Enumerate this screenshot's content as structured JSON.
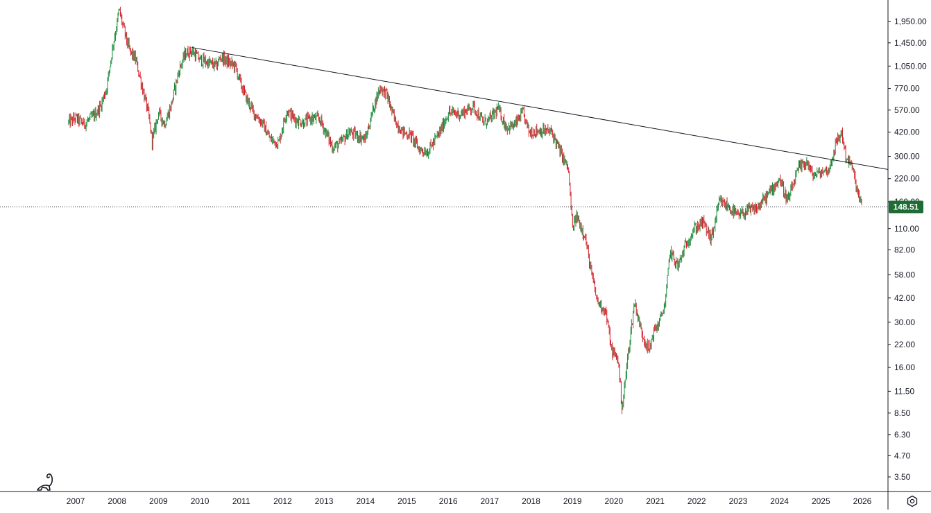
{
  "chart_data": {
    "type": "candlestick",
    "scale": "log",
    "title": "",
    "xlabel": "",
    "ylabel": "",
    "ylim": [
      3.0,
      2400
    ],
    "x_ticks": [
      "2007",
      "2008",
      "2009",
      "2010",
      "2011",
      "2012",
      "2013",
      "2014",
      "2015",
      "2016",
      "2017",
      "2018",
      "2019",
      "2020",
      "2021",
      "2022",
      "2023",
      "2024",
      "2025",
      "2026"
    ],
    "y_ticks": [
      "1,950.00",
      "1,450.00",
      "1,050.00",
      "770.00",
      "570.00",
      "420.00",
      "300.00",
      "220.00",
      "160.00",
      "110.00",
      "82.00",
      "58.00",
      "42.00",
      "30.00",
      "22.00",
      "16.00",
      "11.50",
      "8.50",
      "6.30",
      "4.70",
      "3.50"
    ],
    "last_price": {
      "label": "148.51",
      "value": 148.51,
      "color": "#1e6b34"
    },
    "colors": {
      "up": "#1a8a3a",
      "down": "#d41f28",
      "trendline": "#131722"
    },
    "trendline": {
      "start": {
        "year": 2009.8,
        "price": 1360
      },
      "end": {
        "year": 2026.65,
        "price": 250
      }
    },
    "price_path": [
      [
        2006.83,
        480
      ],
      [
        2007.0,
        510
      ],
      [
        2007.2,
        470
      ],
      [
        2007.45,
        530
      ],
      [
        2007.6,
        600
      ],
      [
        2007.75,
        780
      ],
      [
        2007.9,
        1400
      ],
      [
        2008.0,
        1900
      ],
      [
        2008.05,
        2300
      ],
      [
        2008.15,
        1800
      ],
      [
        2008.3,
        1300
      ],
      [
        2008.45,
        1150
      ],
      [
        2008.6,
        800
      ],
      [
        2008.75,
        550
      ],
      [
        2008.85,
        370
      ],
      [
        2009.0,
        550
      ],
      [
        2009.15,
        470
      ],
      [
        2009.3,
        600
      ],
      [
        2009.5,
        1000
      ],
      [
        2009.65,
        1250
      ],
      [
        2009.8,
        1300
      ],
      [
        2010.0,
        1150
      ],
      [
        2010.2,
        1100
      ],
      [
        2010.4,
        1050
      ],
      [
        2010.5,
        1200
      ],
      [
        2010.7,
        1100
      ],
      [
        2010.85,
        1050
      ],
      [
        2011.0,
        800
      ],
      [
        2011.15,
        650
      ],
      [
        2011.3,
        550
      ],
      [
        2011.5,
        480
      ],
      [
        2011.7,
        380
      ],
      [
        2011.9,
        360
      ],
      [
        2012.1,
        570
      ],
      [
        2012.3,
        500
      ],
      [
        2012.5,
        480
      ],
      [
        2012.7,
        510
      ],
      [
        2012.9,
        500
      ],
      [
        2013.1,
        390
      ],
      [
        2013.2,
        340
      ],
      [
        2013.4,
        360
      ],
      [
        2013.6,
        420
      ],
      [
        2013.8,
        400
      ],
      [
        2014.0,
        380
      ],
      [
        2014.2,
        600
      ],
      [
        2014.35,
        780
      ],
      [
        2014.5,
        720
      ],
      [
        2014.7,
        500
      ],
      [
        2014.9,
        420
      ],
      [
        2015.1,
        400
      ],
      [
        2015.3,
        330
      ],
      [
        2015.5,
        320
      ],
      [
        2015.8,
        420
      ],
      [
        2016.0,
        550
      ],
      [
        2016.3,
        540
      ],
      [
        2016.6,
        600
      ],
      [
        2016.85,
        480
      ],
      [
        2017.0,
        500
      ],
      [
        2017.2,
        580
      ],
      [
        2017.4,
        450
      ],
      [
        2017.6,
        460
      ],
      [
        2017.8,
        550
      ],
      [
        2017.95,
        420
      ],
      [
        2018.2,
        430
      ],
      [
        2018.5,
        420
      ],
      [
        2018.7,
        320
      ],
      [
        2018.9,
        250
      ],
      [
        2019.0,
        110
      ],
      [
        2019.1,
        130
      ],
      [
        2019.3,
        100
      ],
      [
        2019.45,
        60
      ],
      [
        2019.6,
        40
      ],
      [
        2019.8,
        35
      ],
      [
        2019.95,
        20
      ],
      [
        2020.1,
        18
      ],
      [
        2020.2,
        9
      ],
      [
        2020.35,
        20
      ],
      [
        2020.5,
        40
      ],
      [
        2020.65,
        27
      ],
      [
        2020.85,
        20
      ],
      [
        2020.95,
        26
      ],
      [
        2021.1,
        30
      ],
      [
        2021.25,
        40
      ],
      [
        2021.35,
        80
      ],
      [
        2021.55,
        65
      ],
      [
        2021.75,
        90
      ],
      [
        2021.95,
        110
      ],
      [
        2022.15,
        120
      ],
      [
        2022.35,
        95
      ],
      [
        2022.55,
        160
      ],
      [
        2022.75,
        150
      ],
      [
        2023.0,
        130
      ],
      [
        2023.2,
        140
      ],
      [
        2023.45,
        145
      ],
      [
        2023.75,
        180
      ],
      [
        2024.0,
        220
      ],
      [
        2024.2,
        160
      ],
      [
        2024.45,
        250
      ],
      [
        2024.65,
        280
      ],
      [
        2024.8,
        230
      ],
      [
        2025.0,
        240
      ],
      [
        2025.2,
        250
      ],
      [
        2025.35,
        350
      ],
      [
        2025.5,
        420
      ],
      [
        2025.6,
        300
      ],
      [
        2025.75,
        260
      ],
      [
        2025.9,
        175
      ],
      [
        2026.0,
        148.51
      ]
    ]
  }
}
